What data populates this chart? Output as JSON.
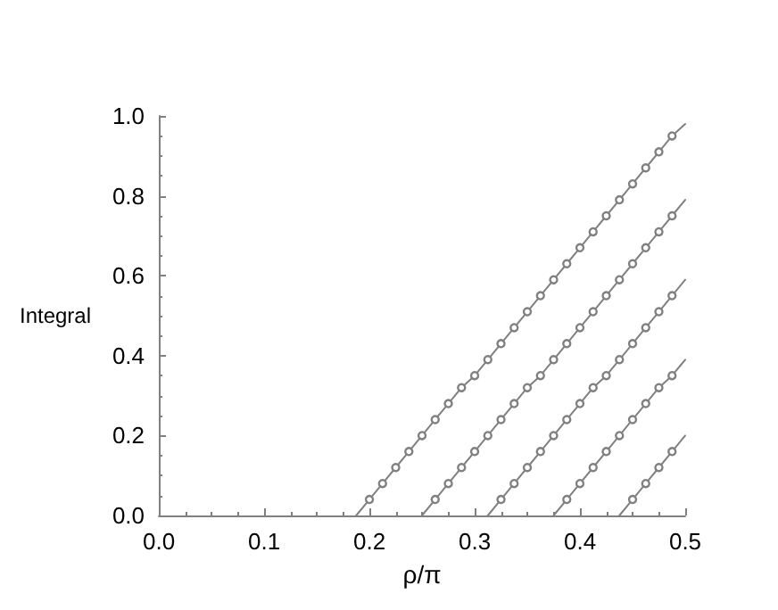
{
  "chart_data": {
    "type": "line",
    "xlabel": "ρ/π",
    "ylabel": "Integral",
    "xlim": [
      0,
      0.5
    ],
    "xticks": [
      {
        "value": 0,
        "label": "0.0"
      },
      {
        "value": 0.1,
        "label": "0.1"
      },
      {
        "value": 0.2,
        "label": "0.2"
      },
      {
        "value": 0.3,
        "label": "0.3"
      },
      {
        "value": 0.4,
        "label": "0.4"
      },
      {
        "value": 0.5,
        "label": "0.5"
      }
    ],
    "ylim": [
      0,
      1
    ],
    "yticks": [
      {
        "value": 0,
        "label": "0.0"
      },
      0.2,
      0.4,
      0.6,
      0.8,
      {
        "value": 1,
        "label": "1.0"
      }
    ],
    "grid": false,
    "marker": "circle",
    "line_style": "solid",
    "series": [
      {
        "color": "#808080",
        "x": [
          0.1875,
          0.2,
          0.2125,
          0.225,
          0.2375,
          0.25,
          0.2625,
          0.275,
          0.2875,
          0.3,
          0.3125,
          0.325,
          0.3375,
          0.35,
          0.3625,
          0.375,
          0.3875,
          0.4,
          0.4125,
          0.425,
          0.4375,
          0.45,
          0.4625,
          0.475,
          0.4875,
          0.5
        ],
        "values": [
          0,
          0.04,
          0.08,
          0.12,
          0.16,
          0.2,
          0.24,
          0.28,
          0.32,
          0.35,
          0.39,
          0.43,
          0.47,
          0.51,
          0.55,
          0.59,
          0.63,
          0.67,
          0.71,
          0.75,
          0.79,
          0.83,
          0.87,
          0.91,
          0.95,
          0.98
        ]
      },
      {
        "color": "#808080",
        "x": [
          0.25,
          0.2625,
          0.275,
          0.2875,
          0.3,
          0.3125,
          0.325,
          0.3375,
          0.35,
          0.3625,
          0.375,
          0.3875,
          0.4,
          0.4125,
          0.425,
          0.4375,
          0.45,
          0.4625,
          0.475,
          0.4875,
          0.5
        ],
        "values": [
          0,
          0.04,
          0.08,
          0.12,
          0.16,
          0.2,
          0.24,
          0.28,
          0.32,
          0.35,
          0.39,
          0.43,
          0.47,
          0.51,
          0.55,
          0.59,
          0.63,
          0.67,
          0.71,
          0.75,
          0.79
        ]
      },
      {
        "color": "#808080",
        "x": [
          0.3125,
          0.325,
          0.3375,
          0.35,
          0.3625,
          0.375,
          0.3875,
          0.4,
          0.4125,
          0.425,
          0.4375,
          0.45,
          0.4625,
          0.475,
          0.4875,
          0.5
        ],
        "values": [
          0,
          0.04,
          0.08,
          0.12,
          0.16,
          0.2,
          0.24,
          0.28,
          0.32,
          0.35,
          0.39,
          0.43,
          0.47,
          0.51,
          0.55,
          0.59
        ]
      },
      {
        "color": "#808080",
        "x": [
          0.375,
          0.3875,
          0.4,
          0.4125,
          0.425,
          0.4375,
          0.45,
          0.4625,
          0.475,
          0.4875,
          0.5
        ],
        "values": [
          0,
          0.04,
          0.08,
          0.12,
          0.16,
          0.2,
          0.24,
          0.28,
          0.32,
          0.35,
          0.39
        ]
      },
      {
        "color": "#808080",
        "x": [
          0.4375,
          0.45,
          0.4625,
          0.475,
          0.4875,
          0.5
        ],
        "values": [
          0,
          0.04,
          0.08,
          0.12,
          0.16,
          0.2
        ]
      }
    ]
  }
}
